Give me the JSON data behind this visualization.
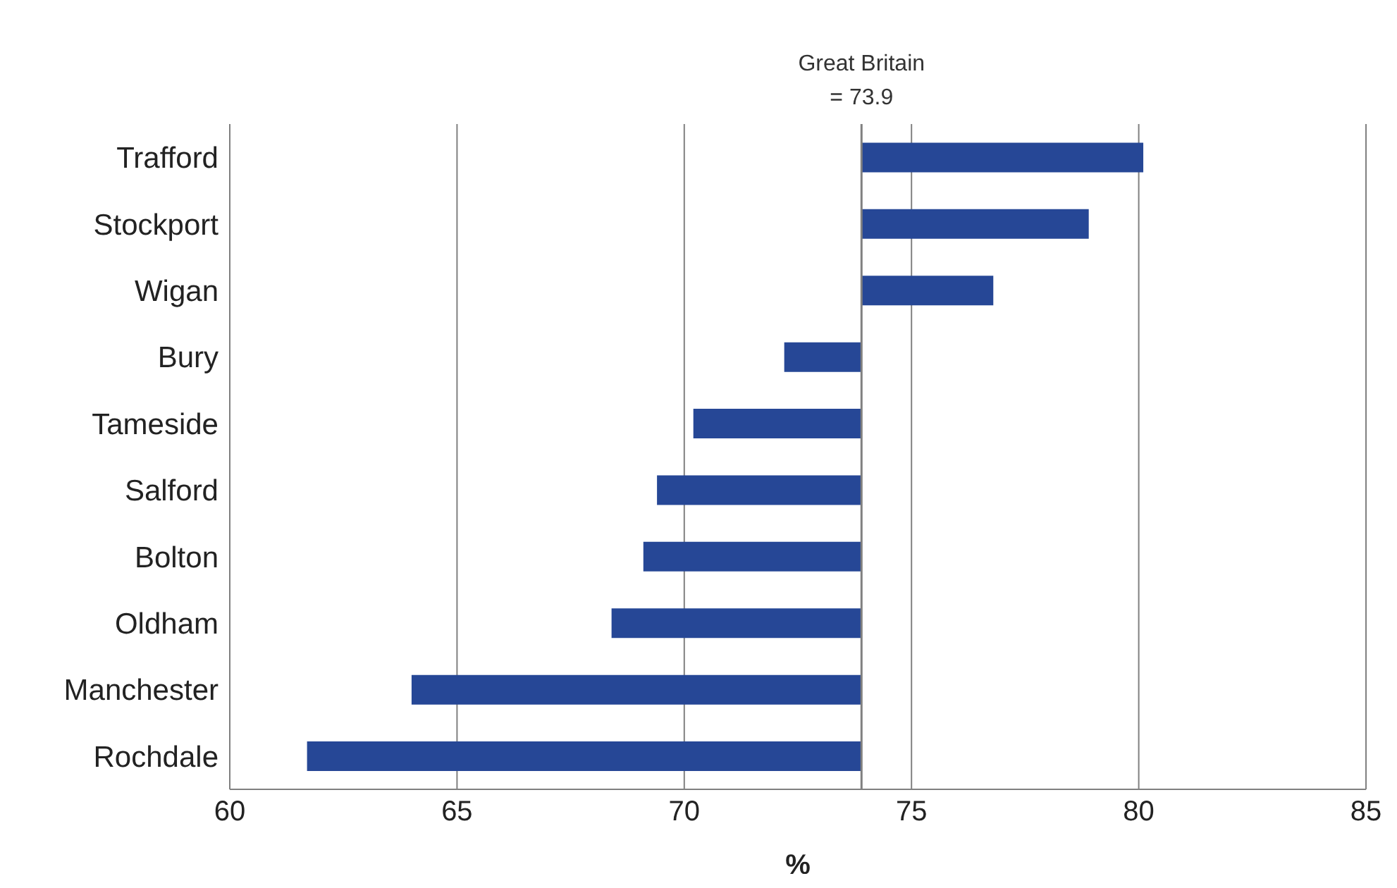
{
  "chart_data": {
    "type": "bar",
    "orientation": "horizontal",
    "xlabel": "%",
    "categories": [
      "Trafford",
      "Stockport",
      "Wigan",
      "Bury",
      "Tameside",
      "Salford",
      "Bolton",
      "Oldham",
      "Manchester",
      "Rochdale"
    ],
    "values": [
      6.2,
      5.0,
      2.9,
      -1.7,
      -3.7,
      -4.5,
      -4.8,
      -5.5,
      -9.9,
      -12.2
    ],
    "base": [
      73.9,
      73.9,
      73.9,
      73.9,
      73.9,
      73.9,
      73.9,
      73.9,
      73.9,
      73.9
    ],
    "color": "#264796",
    "xlim": [
      60,
      85
    ],
    "xticks": [
      60,
      65,
      70,
      75,
      80,
      85
    ],
    "grid": "x",
    "legend": false,
    "ref_lines": [
      {
        "axis": "x",
        "value": 73.9,
        "label": "Great Britain\n= 73.9",
        "color": "#808080"
      }
    ]
  }
}
